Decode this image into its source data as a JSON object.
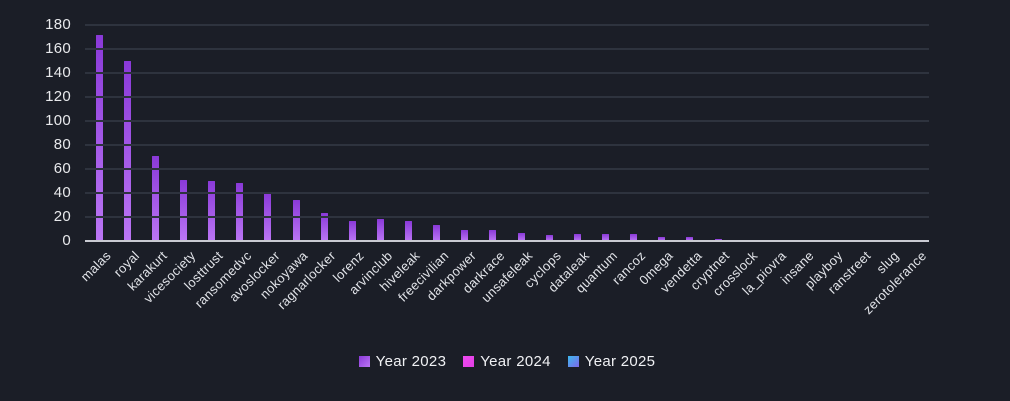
{
  "chart_data": {
    "type": "bar",
    "title": "",
    "xlabel": "",
    "ylabel": "",
    "ylim": [
      0,
      180
    ],
    "ytick_step": 20,
    "grid": true,
    "legend_position": "bottom-center",
    "categories": [
      "malas",
      "royal",
      "karakurt",
      "vicesociety",
      "losttrust",
      "ransomedvc",
      "avoslocker",
      "nokoyawa",
      "ragnarlocker",
      "lorenz",
      "arvinclub",
      "hiveleak",
      "freecivilian",
      "darkpower",
      "darkrace",
      "unsafeleak",
      "cyclops",
      "dataleak",
      "quantum",
      "rancoz",
      "0mega",
      "vendetta",
      "cryptnet",
      "crosslock",
      "la_piovra",
      "insane",
      "playboy",
      "ranstreet",
      "slug",
      "zerotolerance"
    ],
    "series": [
      {
        "name": "Year 2023",
        "values": [
          172,
          150,
          71,
          51,
          50,
          48,
          40,
          34,
          23,
          17,
          18,
          17,
          13,
          9,
          9,
          7,
          5,
          6,
          6,
          6,
          3,
          3,
          2,
          1,
          1,
          1,
          1,
          1,
          1,
          1
        ],
        "color_top": "#8a39d8",
        "color_bottom": "#bb76f4"
      },
      {
        "name": "Year 2024",
        "values": [],
        "color_top": "#ee4af0",
        "color_bottom": "#e23fe4"
      },
      {
        "name": "Year 2025",
        "values": [],
        "color_top": "#3cb9ee",
        "color_bottom": "#7e68ea"
      }
    ]
  },
  "colors": {
    "background": "#1b1e27",
    "gridline": "#2e333e",
    "axis_line": "#c9cad2",
    "tick_text": "#e8e9ec",
    "category_text": "#e2e4e9",
    "legend_text": "#f0f1f4"
  }
}
